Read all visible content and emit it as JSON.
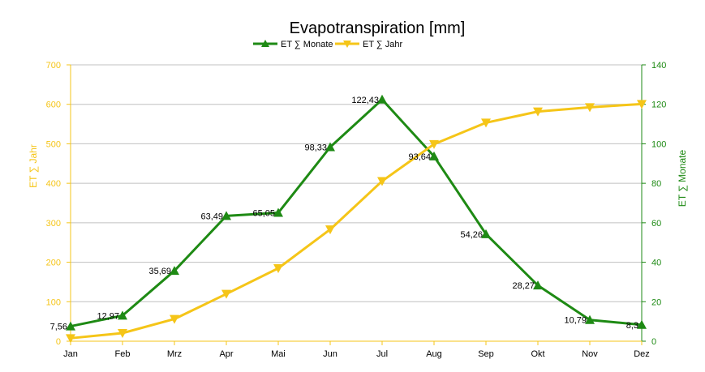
{
  "chart_data": {
    "type": "line",
    "title": "Evapotranspiration [mm]",
    "categories": [
      "Jan",
      "Feb",
      "Mrz",
      "Apr",
      "Mai",
      "Jun",
      "Jul",
      "Aug",
      "Sep",
      "Okt",
      "Nov",
      "Dez"
    ],
    "left_axis": {
      "label": "ET ∑ Jahr",
      "range": [
        0,
        700
      ],
      "ticks": [
        "0",
        "100",
        "200",
        "300",
        "400",
        "500",
        "600",
        "700"
      ],
      "color": "#f5c518"
    },
    "right_axis": {
      "label": "ET ∑ Monate",
      "range": [
        0,
        140
      ],
      "ticks": [
        "0",
        "20",
        "40",
        "60",
        "80",
        "100",
        "120",
        "140"
      ],
      "color": "#1e8a14"
    },
    "series": [
      {
        "name": "ET ∑ Monate",
        "axis": "right",
        "color": "#1e8a14",
        "marker": "triangle-up",
        "values": [
          7.56,
          12.97,
          35.69,
          63.49,
          65.05,
          98.33,
          122.43,
          93.64,
          54.26,
          28.27,
          10.79,
          8.3
        ],
        "labels": [
          "7,56",
          "12,97",
          "35,69",
          "63,49",
          "65,05",
          "98,33",
          "122,43",
          "93,64",
          "54,26",
          "28,27",
          "10,79",
          "8,3"
        ]
      },
      {
        "name": "ET ∑ Jahr",
        "axis": "left",
        "color": "#f5c518",
        "marker": "triangle-down",
        "values": [
          7.56,
          20.53,
          56.22,
          119.71,
          184.76,
          283.09,
          405.52,
          499.16,
          553.42,
          581.69,
          592.48,
          600.78
        ]
      }
    ],
    "legend_position": "top-center",
    "grid": true
  }
}
